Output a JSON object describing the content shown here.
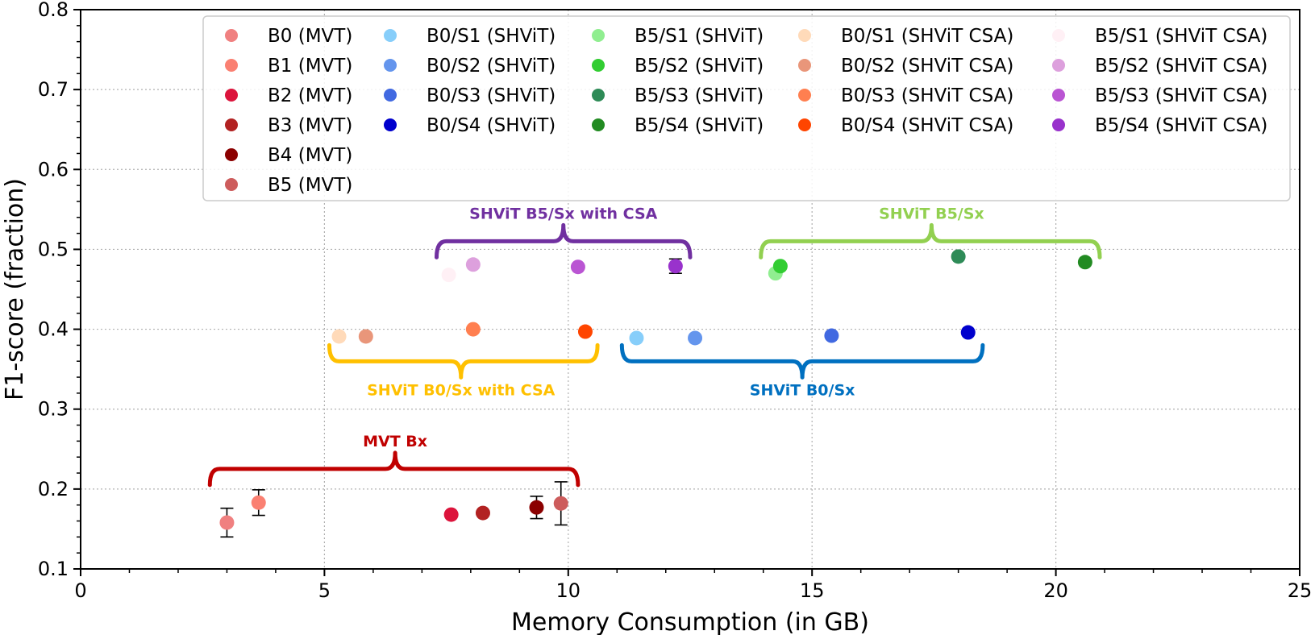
{
  "chart_data": {
    "type": "scatter",
    "xlabel": "Memory Consumption (in GB)",
    "ylabel": "F1-score (fraction)",
    "xlim": [
      0,
      25
    ],
    "ylim": [
      0.1,
      0.8
    ],
    "x_ticks": [
      0,
      5,
      10,
      15,
      20,
      25
    ],
    "x_tick_labels": [
      "0",
      "5",
      "10",
      "15",
      "20",
      "25"
    ],
    "y_ticks": [
      0.1,
      0.2,
      0.3,
      0.4,
      0.5,
      0.6,
      0.7,
      0.8
    ],
    "y_tick_labels": [
      "0.1",
      "0.2",
      "0.3",
      "0.4",
      "0.5",
      "0.6",
      "0.7",
      "0.8"
    ],
    "grid": true,
    "grid_style": "dotted",
    "legend_position": "top-right",
    "series": [
      {
        "name": "B0 (MVT)",
        "color": "#f08080",
        "x": 3.0,
        "y": 0.158,
        "yerr": 0.018
      },
      {
        "name": "B1 (MVT)",
        "color": "#fa8072",
        "x": 3.65,
        "y": 0.183,
        "yerr": 0.016
      },
      {
        "name": "B2 (MVT)",
        "color": "#dc143c",
        "x": 7.6,
        "y": 0.168,
        "yerr": 0.0
      },
      {
        "name": "B3 (MVT)",
        "color": "#b22222",
        "x": 8.25,
        "y": 0.17,
        "yerr": 0.0
      },
      {
        "name": "B4 (MVT)",
        "color": "#8b0000",
        "x": 9.35,
        "y": 0.177,
        "yerr": 0.014
      },
      {
        "name": "B5 (MVT)",
        "color": "#cd5c5c",
        "x": 9.85,
        "y": 0.182,
        "yerr": 0.027
      },
      {
        "name": "B0/S1 (SHViT)",
        "color": "#87cefa",
        "x": 11.4,
        "y": 0.389,
        "yerr": 0.0
      },
      {
        "name": "B0/S2 (SHViT)",
        "color": "#6495ed",
        "x": 12.6,
        "y": 0.389,
        "yerr": 0.0
      },
      {
        "name": "B0/S3 (SHViT)",
        "color": "#4169e1",
        "x": 15.4,
        "y": 0.392,
        "yerr": 0.0
      },
      {
        "name": "B0/S4 (SHViT)",
        "color": "#0000cd",
        "x": 18.2,
        "y": 0.396,
        "yerr": 0.0
      },
      {
        "name": "B5/S1 (SHViT)",
        "color": "#90ee90",
        "x": 14.25,
        "y": 0.47,
        "yerr": 0.0
      },
      {
        "name": "B5/S2 (SHViT)",
        "color": "#32cd32",
        "x": 14.35,
        "y": 0.479,
        "yerr": 0.0
      },
      {
        "name": "B5/S3 (SHViT)",
        "color": "#2e8b57",
        "x": 18.0,
        "y": 0.491,
        "yerr": 0.0
      },
      {
        "name": "B5/S4 (SHViT)",
        "color": "#228b22",
        "x": 20.6,
        "y": 0.484,
        "yerr": 0.0
      },
      {
        "name": "B0/S1 (SHViT CSA)",
        "color": "#ffdab9",
        "x": 5.3,
        "y": 0.391,
        "yerr": 0.0
      },
      {
        "name": "B0/S2 (SHViT CSA)",
        "color": "#e9967a",
        "x": 5.85,
        "y": 0.391,
        "yerr": 0.0
      },
      {
        "name": "B0/S3 (SHViT CSA)",
        "color": "#ff7f50",
        "x": 8.05,
        "y": 0.4,
        "yerr": 0.0
      },
      {
        "name": "B0/S4 (SHViT CSA)",
        "color": "#ff4500",
        "x": 10.35,
        "y": 0.397,
        "yerr": 0.0
      },
      {
        "name": "B5/S1 (SHViT CSA)",
        "color": "#fff0f5",
        "x": 7.55,
        "y": 0.468,
        "yerr": 0.0
      },
      {
        "name": "B5/S2 (SHViT CSA)",
        "color": "#dda0dd",
        "x": 8.05,
        "y": 0.481,
        "yerr": 0.0
      },
      {
        "name": "B5/S3 (SHViT CSA)",
        "color": "#ba55d3",
        "x": 10.2,
        "y": 0.478,
        "yerr": 0.0
      },
      {
        "name": "B5/S4 (SHViT CSA)",
        "color": "#9932cc",
        "x": 12.2,
        "y": 0.479,
        "yerr": 0.009
      }
    ],
    "legend_columns": [
      [
        "B0 (MVT)",
        "B1 (MVT)",
        "B2 (MVT)",
        "B3 (MVT)",
        "B4 (MVT)",
        "B5 (MVT)"
      ],
      [
        "B0/S1 (SHViT)",
        "B0/S2 (SHViT)",
        "B0/S3 (SHViT)",
        "B0/S4 (SHViT)"
      ],
      [
        "B5/S1 (SHViT)",
        "B5/S2 (SHViT)",
        "B5/S3 (SHViT)",
        "B5/S4 (SHViT)"
      ],
      [
        "B0/S1 (SHViT CSA)",
        "B0/S2 (SHViT CSA)",
        "B0/S3 (SHViT CSA)",
        "B0/S4 (SHViT CSA)"
      ],
      [
        "B5/S1 (SHViT CSA)",
        "B5/S2 (SHViT CSA)",
        "B5/S3 (SHViT CSA)",
        "B5/S4 (SHViT CSA)"
      ]
    ],
    "annotations": [
      {
        "text": "MVT Bx",
        "color": "#c00000",
        "x_start": 2.65,
        "x_end": 10.2,
        "x_tip": 6.45,
        "y": 0.205,
        "side": "above"
      },
      {
        "text": "SHViT B0/Sx with CSA",
        "color": "#ffc000",
        "x_start": 5.1,
        "x_end": 10.6,
        "x_tip": 7.8,
        "y": 0.38,
        "side": "below"
      },
      {
        "text": "SHViT B0/Sx",
        "color": "#0070c0",
        "x_start": 11.1,
        "x_end": 18.5,
        "x_tip": 14.8,
        "y": 0.38,
        "side": "below"
      },
      {
        "text": "SHViT B5/Sx with CSA",
        "color": "#7030a0",
        "x_start": 7.3,
        "x_end": 12.5,
        "x_tip": 9.9,
        "y": 0.49,
        "side": "above"
      },
      {
        "text": "SHViT B5/Sx",
        "color": "#92d050",
        "x_start": 13.95,
        "x_end": 20.9,
        "x_tip": 17.45,
        "y": 0.49,
        "side": "above"
      }
    ]
  }
}
